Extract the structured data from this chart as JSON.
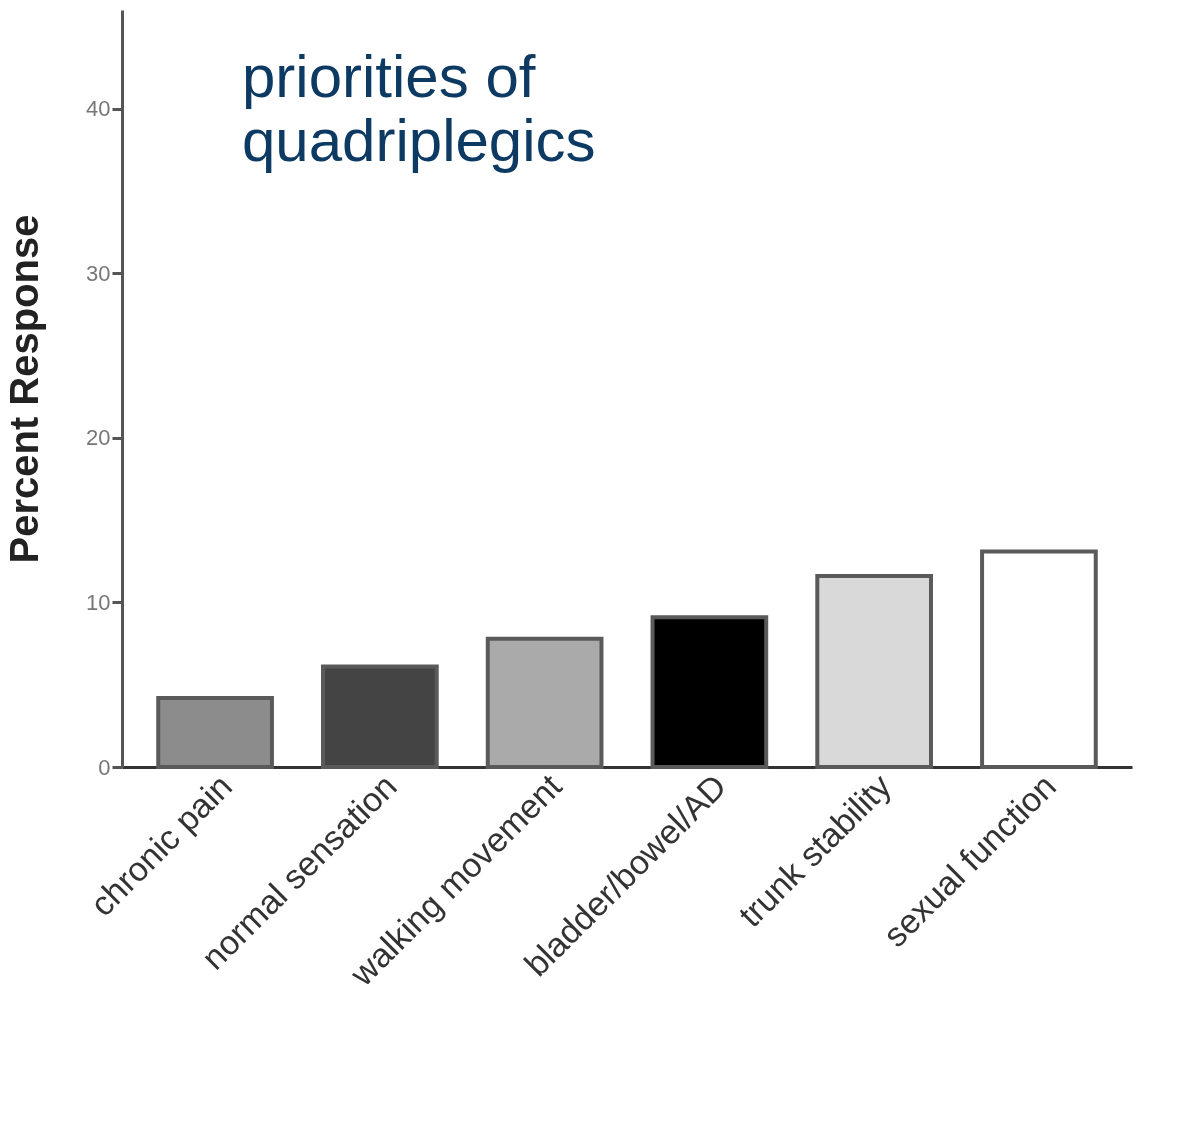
{
  "chart_data": {
    "type": "bar",
    "title": "priorities of quadriplegics",
    "ylabel": "Percent Response",
    "categories": [
      "chronic pain",
      "normal sensation",
      "walking movement",
      "bladder/bowel/AD",
      "trunk stability",
      "sexual function"
    ],
    "values": [
      4.2,
      6.1,
      7.8,
      9.1,
      11.6,
      13.1
    ],
    "colors": [
      "#8c8c8c",
      "#444444",
      "#aaaaaa",
      "#000000",
      "#d9d9d9",
      "#ffffff"
    ],
    "ylim": [
      0,
      46
    ],
    "yticks": [
      0,
      10,
      20,
      30,
      40
    ],
    "grid": false
  }
}
